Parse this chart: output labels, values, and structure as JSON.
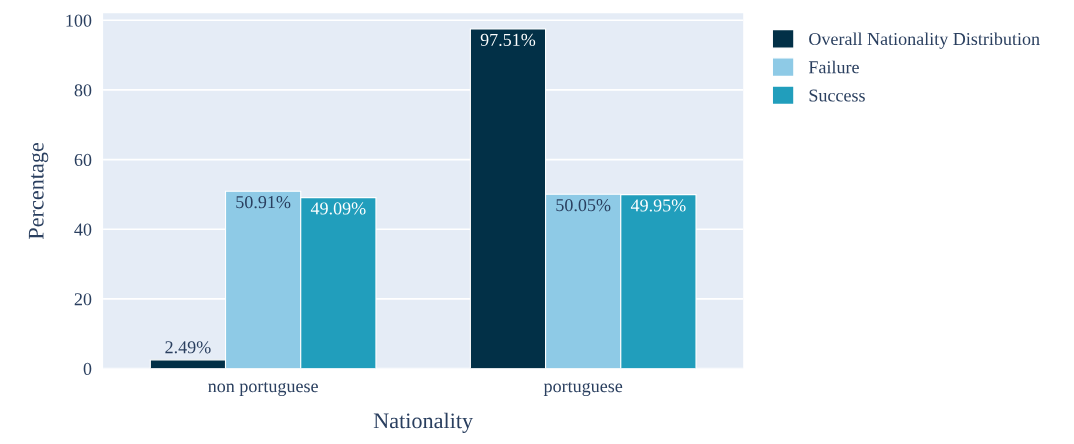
{
  "chart_data": {
    "type": "bar",
    "xlabel": "Nationality",
    "ylabel": "Percentage",
    "categories": [
      "non portuguese",
      "portuguese"
    ],
    "series": [
      {
        "name": "Overall Nationality Distribution",
        "color": "#023047",
        "values": [
          2.49,
          97.51
        ],
        "value_labels": [
          "2.49%",
          "97.51%"
        ]
      },
      {
        "name": "Failure",
        "color": "#8ecae6",
        "values": [
          50.91,
          50.05
        ],
        "value_labels": [
          "50.91%",
          "50.05%"
        ]
      },
      {
        "name": "Success",
        "color": "#219ebc",
        "values": [
          49.09,
          49.95
        ],
        "value_labels": [
          "49.09%",
          "49.95%"
        ]
      }
    ],
    "ylim": [
      0,
      102
    ],
    "yticks": [
      0,
      20,
      40,
      60,
      80,
      100
    ],
    "grid": "y",
    "legend": "top right"
  }
}
